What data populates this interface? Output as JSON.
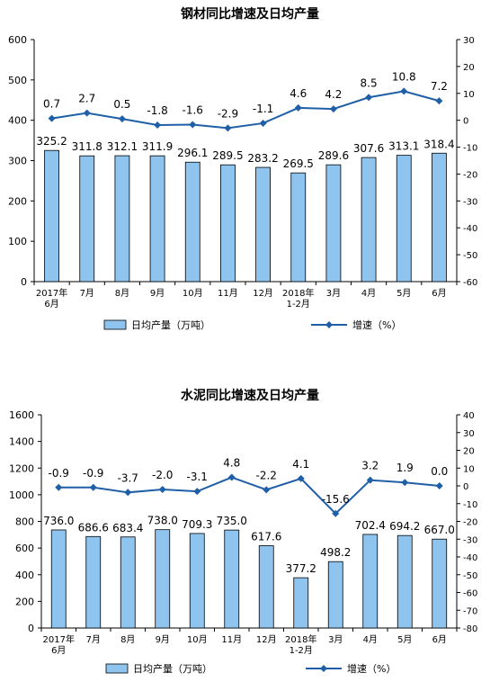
{
  "colors": {
    "bar_fill": "#8fc4ee",
    "bar_stroke": "#000000",
    "line": "#1f5fa8"
  },
  "chart_data": [
    {
      "type": "bar",
      "title": "钢材同比增速及日均产量",
      "categories": [
        [
          "2017年",
          "6月"
        ],
        [
          "7月"
        ],
        [
          "8月"
        ],
        [
          "9月"
        ],
        [
          "10月"
        ],
        [
          "11月"
        ],
        [
          "12月"
        ],
        [
          "2018年",
          "1-2月"
        ],
        [
          "3月"
        ],
        [
          "4月"
        ],
        [
          "5月"
        ],
        [
          "6月"
        ]
      ],
      "series": [
        {
          "name": "日均产量（万吨）",
          "type": "bar",
          "axis": "left",
          "values": [
            325.2,
            311.8,
            312.1,
            311.9,
            296.1,
            289.5,
            283.2,
            269.5,
            289.6,
            307.6,
            313.1,
            318.4
          ]
        },
        {
          "name": "增速（%）",
          "type": "line",
          "axis": "right",
          "values": [
            0.7,
            2.7,
            0.5,
            -1.8,
            -1.6,
            -2.9,
            -1.1,
            4.6,
            4.2,
            8.5,
            10.8,
            7.2
          ]
        }
      ],
      "y_left": {
        "lim": [
          0,
          600
        ],
        "ticks": [
          0,
          100,
          200,
          300,
          400,
          500,
          600
        ]
      },
      "y_right": {
        "lim": [
          -60,
          30
        ],
        "ticks": [
          -60,
          -50,
          -40,
          -30,
          -20,
          -10,
          0,
          10,
          20,
          30
        ]
      },
      "legend_position": "bottom"
    },
    {
      "type": "bar",
      "title": "水泥同比增速及日均产量",
      "categories": [
        [
          "2017年",
          "6月"
        ],
        [
          "7月"
        ],
        [
          "8月"
        ],
        [
          "9月"
        ],
        [
          "10月"
        ],
        [
          "11月"
        ],
        [
          "12月"
        ],
        [
          "2018年",
          "1-2月"
        ],
        [
          "3月"
        ],
        [
          "4月"
        ],
        [
          "5月"
        ],
        [
          "6月"
        ]
      ],
      "series": [
        {
          "name": "日均产量（万吨）",
          "type": "bar",
          "axis": "left",
          "values": [
            736.0,
            686.6,
            683.4,
            738.0,
            709.3,
            735.0,
            617.6,
            377.2,
            498.2,
            702.4,
            694.2,
            667.0
          ]
        },
        {
          "name": "增速（%）",
          "type": "line",
          "axis": "right",
          "values": [
            -0.9,
            -0.9,
            -3.7,
            -2.0,
            -3.1,
            4.8,
            -2.2,
            4.1,
            -15.6,
            3.2,
            1.9,
            0.0
          ]
        }
      ],
      "y_left": {
        "lim": [
          0,
          1600
        ],
        "ticks": [
          0,
          200,
          400,
          600,
          800,
          1000,
          1200,
          1400,
          1600
        ]
      },
      "y_right": {
        "lim": [
          -80,
          40
        ],
        "ticks": [
          -80,
          -70,
          -60,
          -50,
          -40,
          -30,
          -20,
          -10,
          0,
          10,
          20,
          30,
          40
        ]
      },
      "legend_position": "bottom"
    }
  ]
}
